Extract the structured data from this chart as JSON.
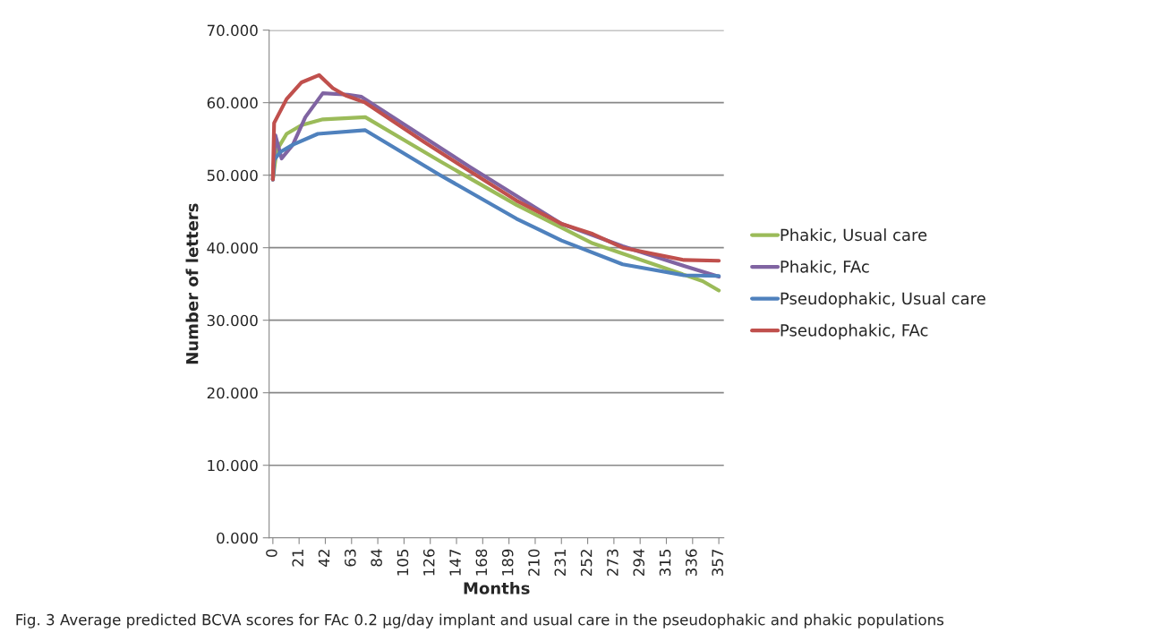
{
  "chart_data": {
    "type": "line",
    "xlabel": "Months",
    "ylabel": "Number of letters",
    "xlim": [
      -3,
      361
    ],
    "xticks": [
      0,
      21,
      42,
      63,
      84,
      105,
      126,
      147,
      168,
      189,
      210,
      231,
      252,
      273,
      294,
      315,
      336,
      357
    ],
    "ylim": [
      0,
      70
    ],
    "yticks": [
      {
        "value": 0,
        "label": "0.000"
      },
      {
        "value": 10,
        "label": "10.000"
      },
      {
        "value": 20,
        "label": "20.000"
      },
      {
        "value": 30,
        "label": "30.000"
      },
      {
        "value": 40,
        "label": "40.000"
      },
      {
        "value": 50,
        "label": "50.000"
      },
      {
        "value": 60,
        "label": "60.000"
      },
      {
        "value": 70,
        "label": "70.000"
      }
    ],
    "grid": "y",
    "legend": "right",
    "marker": "none",
    "line_style": "solid",
    "series": [
      {
        "name": "Phakic, Usual care",
        "color": "#9bbb59",
        "x": [
          0,
          3,
          11,
          23,
          40,
          74,
          134,
          195,
          256,
          305,
          344,
          357
        ],
        "values": [
          49.4,
          53.4,
          55.7,
          56.9,
          57.7,
          58.0,
          51.9,
          45.9,
          40.6,
          37.7,
          35.4,
          34.1
        ]
      },
      {
        "name": "Phakic, FAc",
        "color": "#8064a2",
        "x": [
          0,
          2,
          7,
          16,
          26,
          40,
          60,
          71,
          158,
          231,
          280,
          329,
          357
        ],
        "values": [
          49.4,
          55.5,
          52.3,
          54.2,
          58.0,
          61.3,
          61.1,
          60.8,
          51.1,
          43.3,
          40.2,
          37.5,
          36.0
        ]
      },
      {
        "name": "Pseudophakic, Usual care",
        "color": "#4f81bd",
        "x": [
          0,
          1,
          6,
          16,
          36,
          74,
          134,
          195,
          231,
          280,
          329,
          357
        ],
        "values": [
          49.4,
          52.1,
          53.2,
          54.2,
          55.7,
          56.2,
          50.0,
          44.0,
          41.0,
          37.7,
          36.2,
          36.1
        ]
      },
      {
        "name": "Pseudophakic, FAc",
        "color": "#c0504d",
        "x": [
          0,
          1,
          11,
          23,
          37,
          48,
          58,
          74,
          121,
          158,
          195,
          231,
          256,
          280,
          329,
          357
        ],
        "values": [
          49.4,
          57.2,
          60.5,
          62.8,
          63.8,
          62.0,
          61.0,
          60.0,
          54.6,
          50.5,
          46.5,
          43.3,
          41.9,
          40.0,
          38.3,
          38.2
        ]
      }
    ],
    "annotations": [
      "Fig. 3 Average predicted BCVA scores for FAc 0.2 µg/day implant and usual care in the pseudophakic and phakic populations"
    ]
  }
}
